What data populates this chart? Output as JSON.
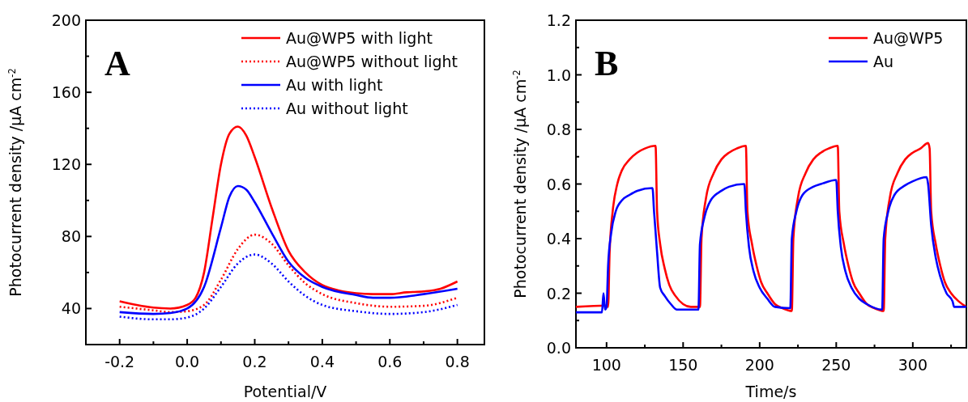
{
  "chart_data": [
    {
      "type": "line",
      "title": "A",
      "xlabel": "Potential/V",
      "ylabel": "Photocurrent density /μA cm$^{-2}$",
      "xlim": [
        -0.3,
        0.88
      ],
      "ylim": [
        20,
        200
      ],
      "xticks": [
        {
          "value": -0.2,
          "label": "-0.2"
        },
        {
          "value": -0.1,
          "label": null
        },
        {
          "value": 0,
          "label": "0.0"
        },
        {
          "value": 0.1,
          "label": null
        },
        {
          "value": 0.2,
          "label": "0.2"
        },
        {
          "value": 0.3,
          "label": null
        },
        {
          "value": 0.4,
          "label": "0.4"
        },
        {
          "value": 0.5,
          "label": null
        },
        {
          "value": 0.6,
          "label": "0.6"
        },
        {
          "value": 0.7,
          "label": null
        },
        {
          "value": 0.8,
          "label": "0.8"
        }
      ],
      "yticks": [
        {
          "value": 40,
          "label": "40"
        },
        {
          "value": 60,
          "label": null
        },
        {
          "value": 80,
          "label": "80"
        },
        {
          "value": 100,
          "label": null
        },
        {
          "value": 120,
          "label": "120"
        },
        {
          "value": 140,
          "label": null
        },
        {
          "value": 160,
          "label": "160"
        },
        {
          "value": 180,
          "label": null
        },
        {
          "value": 200,
          "label": "200"
        }
      ],
      "legend": "top right",
      "grid": false,
      "series": [
        {
          "name": "Au@WP5 with light",
          "color": "#ff0000",
          "line_style": "solid",
          "x": [
            -0.2,
            -0.15,
            -0.1,
            -0.05,
            0,
            0.025,
            0.05,
            0.075,
            0.1,
            0.125,
            0.15,
            0.175,
            0.2,
            0.25,
            0.3,
            0.35,
            0.4,
            0.45,
            0.5,
            0.55,
            0.6,
            0.65,
            0.7,
            0.75,
            0.8
          ],
          "values": [
            44,
            42,
            40.5,
            40,
            42,
            46,
            60,
            90,
            120,
            137,
            141,
            136,
            124,
            96,
            72,
            60,
            53,
            50,
            48.5,
            48,
            48,
            49,
            49.5,
            51,
            55
          ]
        },
        {
          "name": "Au@WP5 without light",
          "color": "#ff0000",
          "line_style": "dotted",
          "x": [
            -0.2,
            -0.1,
            -0.05,
            0,
            0.05,
            0.1,
            0.15,
            0.2,
            0.25,
            0.3,
            0.35,
            0.4,
            0.5,
            0.6,
            0.7,
            0.8
          ],
          "values": [
            41,
            39,
            38,
            38.5,
            42,
            56,
            73,
            81,
            76,
            64,
            54,
            48,
            43,
            41,
            41.5,
            46
          ]
        },
        {
          "name": "Au with light",
          "color": "#0000ff",
          "line_style": "solid",
          "x": [
            -0.2,
            -0.1,
            -0.05,
            0,
            0.05,
            0.1,
            0.125,
            0.15,
            0.175,
            0.2,
            0.25,
            0.3,
            0.35,
            0.4,
            0.5,
            0.55,
            0.6,
            0.7,
            0.8
          ],
          "values": [
            38,
            37,
            37.5,
            40,
            52,
            85,
            102,
            108,
            106,
            99,
            82,
            66,
            57,
            52,
            47.5,
            46,
            46,
            48,
            51
          ]
        },
        {
          "name": "Au without light",
          "color": "#0000ff",
          "line_style": "dotted",
          "x": [
            -0.2,
            -0.1,
            -0.05,
            0,
            0.05,
            0.1,
            0.15,
            0.2,
            0.25,
            0.3,
            0.35,
            0.4,
            0.5,
            0.6,
            0.7,
            0.8
          ],
          "values": [
            35.5,
            34,
            34,
            35,
            40,
            52,
            65,
            70,
            65,
            55,
            47,
            42,
            38.5,
            37,
            38,
            42
          ]
        }
      ]
    },
    {
      "type": "line",
      "title": "B",
      "xlabel": "Time/s",
      "ylabel": "Photocurrent density /μA cm$^{-2}$",
      "xlim": [
        80,
        335
      ],
      "ylim": [
        0,
        1.2
      ],
      "xticks": [
        {
          "value": 100,
          "label": "100"
        },
        {
          "value": 125,
          "label": null
        },
        {
          "value": 150,
          "label": "150"
        },
        {
          "value": 175,
          "label": null
        },
        {
          "value": 200,
          "label": "200"
        },
        {
          "value": 225,
          "label": null
        },
        {
          "value": 250,
          "label": "250"
        },
        {
          "value": 275,
          "label": null
        },
        {
          "value": 300,
          "label": "300"
        },
        {
          "value": 325,
          "label": null
        }
      ],
      "yticks": [
        {
          "value": 0,
          "label": "0.0"
        },
        {
          "value": 0.1,
          "label": null
        },
        {
          "value": 0.2,
          "label": "0.2"
        },
        {
          "value": 0.3,
          "label": null
        },
        {
          "value": 0.4,
          "label": "0.4"
        },
        {
          "value": 0.5,
          "label": null
        },
        {
          "value": 0.6,
          "label": "0.6"
        },
        {
          "value": 0.7,
          "label": null
        },
        {
          "value": 0.8,
          "label": "0.8"
        },
        {
          "value": 0.9,
          "label": null
        },
        {
          "value": 1.0,
          "label": "1.0"
        },
        {
          "value": 1.1,
          "label": null
        },
        {
          "value": 1.2,
          "label": "1.2"
        }
      ],
      "legend": "top right",
      "grid": false,
      "series": [
        {
          "name": "Au@WP5",
          "color": "#ff0000",
          "line_style": "solid",
          "x": [
            80,
            100,
            101,
            102,
            104,
            107,
            110,
            115,
            120,
            125,
            132,
            133,
            135,
            138,
            141,
            145,
            150,
            155,
            161,
            162,
            165,
            170,
            175,
            180,
            185,
            191,
            192,
            195,
            198,
            201,
            205,
            210,
            215,
            221,
            222,
            225,
            230,
            235,
            240,
            245,
            251,
            252,
            255,
            258,
            261,
            265,
            270,
            275,
            281,
            282,
            285,
            290,
            295,
            300,
            305,
            310,
            311,
            312,
            315,
            318,
            321,
            325,
            330,
            335
          ],
          "values": [
            0.15,
            0.155,
            0.15,
            0.35,
            0.5,
            0.6,
            0.65,
            0.69,
            0.715,
            0.73,
            0.74,
            0.5,
            0.38,
            0.29,
            0.23,
            0.19,
            0.16,
            0.15,
            0.15,
            0.4,
            0.55,
            0.64,
            0.69,
            0.715,
            0.73,
            0.74,
            0.5,
            0.38,
            0.3,
            0.24,
            0.2,
            0.16,
            0.145,
            0.135,
            0.4,
            0.55,
            0.64,
            0.69,
            0.715,
            0.73,
            0.74,
            0.5,
            0.38,
            0.3,
            0.24,
            0.2,
            0.16,
            0.145,
            0.135,
            0.4,
            0.55,
            0.64,
            0.69,
            0.715,
            0.73,
            0.75,
            0.73,
            0.5,
            0.38,
            0.3,
            0.24,
            0.2,
            0.17,
            0.15
          ]
        },
        {
          "name": "Au",
          "color": "#0000ff",
          "line_style": "solid",
          "x": [
            80,
            97,
            98,
            99,
            100,
            101,
            103,
            106,
            110,
            115,
            120,
            130,
            131,
            133,
            135,
            138,
            142,
            146,
            160,
            161,
            164,
            168,
            175,
            180,
            190,
            191,
            193,
            196,
            200,
            205,
            210,
            220,
            221,
            224,
            228,
            235,
            240,
            250,
            251,
            253,
            256,
            260,
            265,
            270,
            280,
            281,
            284,
            288,
            295,
            300,
            309,
            310,
            312,
            315,
            318,
            322,
            326,
            327,
            335
          ],
          "values": [
            0.13,
            0.13,
            0.2,
            0.14,
            0.15,
            0.3,
            0.42,
            0.5,
            0.54,
            0.56,
            0.575,
            0.585,
            0.5,
            0.35,
            0.22,
            0.19,
            0.16,
            0.14,
            0.14,
            0.38,
            0.48,
            0.54,
            0.575,
            0.59,
            0.6,
            0.5,
            0.37,
            0.28,
            0.22,
            0.18,
            0.15,
            0.145,
            0.4,
            0.5,
            0.56,
            0.59,
            0.6,
            0.615,
            0.5,
            0.37,
            0.28,
            0.22,
            0.18,
            0.16,
            0.14,
            0.4,
            0.5,
            0.56,
            0.595,
            0.61,
            0.625,
            0.6,
            0.45,
            0.33,
            0.26,
            0.2,
            0.17,
            0.15,
            0.15
          ]
        }
      ]
    }
  ]
}
